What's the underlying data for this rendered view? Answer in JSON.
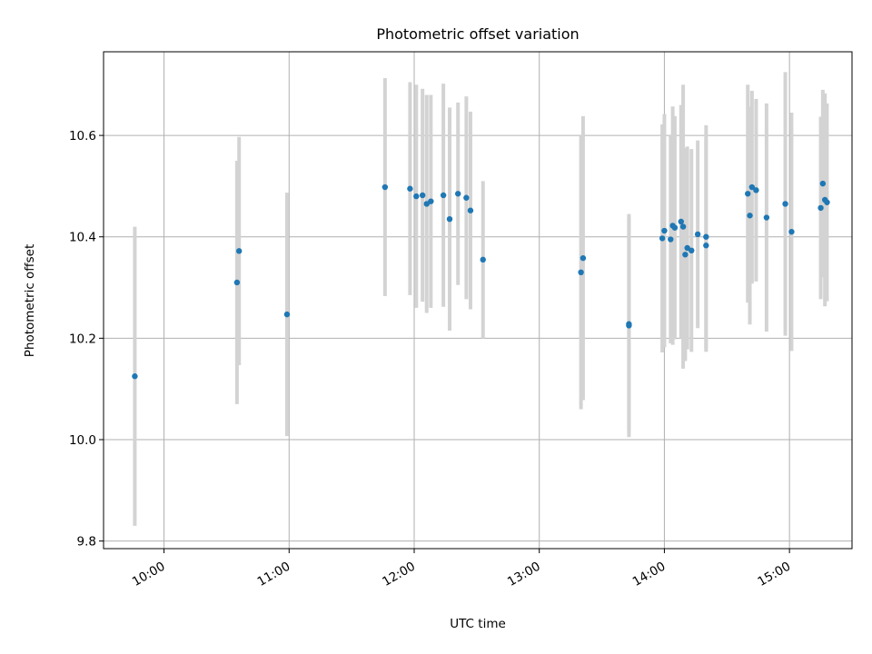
{
  "chart_data": {
    "type": "scatter",
    "title": "Photometric offset variation",
    "xlabel": "UTC time",
    "ylabel": "Photometric offset",
    "x_tick_labels": [
      "10:00",
      "11:00",
      "12:00",
      "13:00",
      "14:00",
      "15:00"
    ],
    "y_tick_labels": [
      "9.8",
      "10.0",
      "10.2",
      "10.4",
      "10.6"
    ],
    "xlim": [
      "09:31",
      "15:30"
    ],
    "ylim": [
      9.785,
      10.765
    ],
    "grid": true,
    "colors": {
      "point": "#1f77b4",
      "errorbar": "#d3d3d3",
      "grid": "#b0b0b0"
    },
    "series": [
      {
        "x": [
          "09:46",
          "10:35",
          "10:36",
          "10:59",
          "11:46",
          "11:58",
          "12:01",
          "12:04",
          "12:06",
          "12:08",
          "12:14",
          "12:17",
          "12:21",
          "12:25",
          "12:27",
          "12:33",
          "13:20",
          "13:21",
          "13:43",
          "13:43",
          "13:59",
          "14:00",
          "14:03",
          "14:04",
          "14:05",
          "14:08",
          "14:09",
          "14:10",
          "14:11",
          "14:13",
          "14:16",
          "14:20",
          "14:20",
          "14:40",
          "14:41",
          "14:42",
          "14:44",
          "14:49",
          "14:58",
          "15:01",
          "15:15",
          "15:16",
          "15:17",
          "15:18"
        ],
        "y": [
          10.125,
          10.31,
          10.372,
          10.247,
          10.498,
          10.495,
          10.48,
          10.482,
          10.465,
          10.47,
          10.482,
          10.435,
          10.485,
          10.477,
          10.452,
          10.355,
          10.33,
          10.358,
          10.228,
          10.225,
          10.397,
          10.412,
          10.395,
          10.422,
          10.418,
          10.43,
          10.42,
          10.365,
          10.378,
          10.373,
          10.405,
          10.383,
          10.4,
          10.485,
          10.442,
          10.498,
          10.492,
          10.438,
          10.465,
          10.41,
          10.457,
          10.505,
          10.473,
          10.468
        ],
        "yerr": [
          0.295,
          0.24,
          0.225,
          0.24,
          0.215,
          0.21,
          0.22,
          0.21,
          0.215,
          0.21,
          0.22,
          0.22,
          0.18,
          0.2,
          0.195,
          0.155,
          0.27,
          0.28,
          0.21,
          0.22,
          0.225,
          0.23,
          0.205,
          0.235,
          0.22,
          0.23,
          0.28,
          0.21,
          0.2,
          0.2,
          0.185,
          0.21,
          0.22,
          0.215,
          0.215,
          0.19,
          0.18,
          0.225,
          0.26,
          0.235,
          0.18,
          0.185,
          0.21,
          0.195
        ]
      }
    ]
  }
}
